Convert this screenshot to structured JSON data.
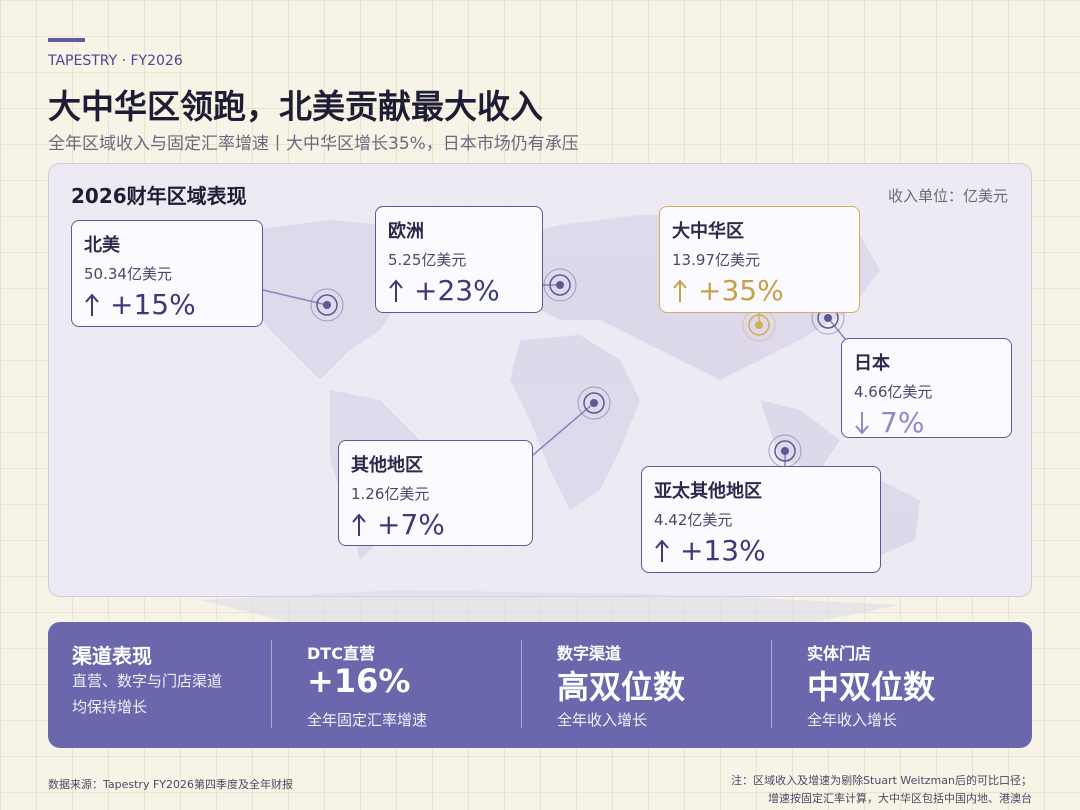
{
  "header": {
    "brand": "TAPESTRY ·  FY2026",
    "title": "大中华区领跑，北美贡献最大收入",
    "subtitle": "全年区域收入与固定汇率增速丨大中华区增长35%，日本市场仍有承压"
  },
  "map": {
    "title": "2026财年区域表现",
    "unit": "收入单位：亿美元",
    "regions": [
      {
        "name": "北美",
        "revenue": "50.34亿美元",
        "growth": "+15%",
        "direction": "up",
        "highlight": false
      },
      {
        "name": "欧洲",
        "revenue": "5.25亿美元",
        "growth": "+23%",
        "direction": "up",
        "highlight": false
      },
      {
        "name": "大中华区",
        "revenue": "13.97亿美元",
        "growth": "+35%",
        "direction": "up",
        "highlight": true
      },
      {
        "name": "日本",
        "revenue": "4.66亿美元",
        "growth": "7%",
        "direction": "down",
        "highlight": false
      },
      {
        "name": "其他地区",
        "revenue": "1.26亿美元",
        "growth": "+7%",
        "direction": "up",
        "highlight": false
      },
      {
        "name": "亚太其他地区",
        "revenue": "4.42亿美元",
        "growth": "+13%",
        "direction": "up",
        "highlight": false
      }
    ]
  },
  "channels": {
    "title": "渠道表现",
    "description": [
      "直营、数字与门店渠道",
      "均保持增长"
    ],
    "items": [
      {
        "label": "DTC直营",
        "value": "+16%",
        "note": "全年固定汇率增速"
      },
      {
        "label": "数字渠道",
        "value": "高双位数",
        "note": "全年收入增长"
      },
      {
        "label": "实体门店",
        "value": "中双位数",
        "note": "全年收入增长"
      }
    ]
  },
  "footer": {
    "source": "数据来源：Tapestry FY2026第四季度及全年财报",
    "notes": [
      "注：区域收入及增速为剔除Stuart Weitzman后的可比口径；",
      "增速按固定汇率计算，大中华区包括中国内地、港澳台"
    ]
  }
}
